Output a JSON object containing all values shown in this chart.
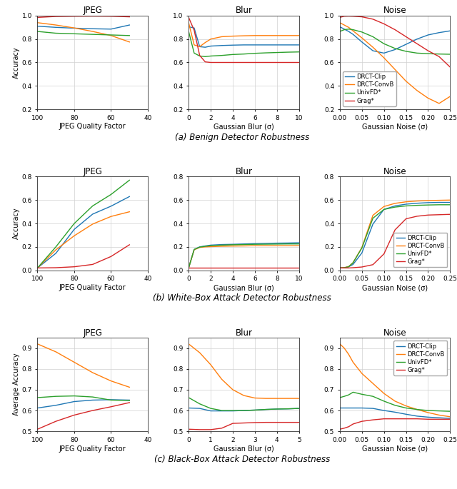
{
  "colors": {
    "DRCT-Clip": "#1f77b4",
    "DRCT-ConvB": "#ff7f0e",
    "UnivFD*": "#2ca02c",
    "Grag*": "#d62728"
  },
  "legend_labels": [
    "DRCT-Clip",
    "DRCT-ConvB",
    "UnivFD*",
    "Grag*"
  ],
  "row0": {
    "subtitle": "(a) Benign Detector Robustness",
    "ylabel": "Accuracy",
    "jpeg": {
      "title": "JPEG",
      "xlabel": "JPEG Quality Factor",
      "xlim": [
        100,
        45
      ],
      "ylim": [
        0.2,
        1.0
      ],
      "xticks": [
        100,
        80,
        60,
        40
      ],
      "yticks": [
        0.2,
        0.4,
        0.6,
        0.8,
        1.0
      ],
      "x": [
        100,
        90,
        80,
        70,
        60,
        50
      ],
      "DRCT-Clip": [
        0.91,
        0.9,
        0.893,
        0.888,
        0.885,
        0.92
      ],
      "DRCT-ConvB": [
        0.94,
        0.92,
        0.895,
        0.865,
        0.83,
        0.775
      ],
      "UnivFD*": [
        0.865,
        0.85,
        0.845,
        0.84,
        0.835,
        0.83
      ],
      "Grag*": [
        0.985,
        0.993,
        0.995,
        0.996,
        0.995,
        0.99
      ]
    },
    "blur": {
      "title": "Blur",
      "xlabel": "Gaussian Blur (σ)",
      "xlim": [
        0,
        10
      ],
      "ylim": [
        0.2,
        1.0
      ],
      "xticks": [
        0,
        2,
        4,
        6,
        8,
        10
      ],
      "yticks": [
        0.2,
        0.4,
        0.6,
        0.8,
        1.0
      ],
      "x": [
        0,
        0.5,
        1.0,
        1.5,
        2.0,
        3.0,
        4.0,
        5.0,
        6.0,
        7.0,
        8.0,
        9.0,
        10.0
      ],
      "DRCT-Clip": [
        0.905,
        0.895,
        0.735,
        0.73,
        0.74,
        0.745,
        0.748,
        0.75,
        0.75,
        0.75,
        0.75,
        0.75,
        0.75
      ],
      "DRCT-ConvB": [
        0.94,
        0.75,
        0.735,
        0.77,
        0.8,
        0.82,
        0.825,
        0.828,
        0.83,
        0.83,
        0.83,
        0.83,
        0.83
      ],
      "UnivFD*": [
        0.865,
        0.68,
        0.655,
        0.65,
        0.655,
        0.66,
        0.668,
        0.672,
        0.678,
        0.682,
        0.685,
        0.688,
        0.69
      ],
      "Grag*": [
        0.985,
        0.875,
        0.66,
        0.605,
        0.6,
        0.6,
        0.6,
        0.6,
        0.6,
        0.6,
        0.6,
        0.6,
        0.6
      ]
    },
    "noise": {
      "title": "Noise",
      "xlabel": "Gaussian Noise (σ)",
      "xlim": [
        0.0,
        0.25
      ],
      "ylim": [
        0.2,
        1.0
      ],
      "xticks": [
        0.0,
        0.05,
        0.1,
        0.15,
        0.2,
        0.25
      ],
      "yticks": [
        0.2,
        0.4,
        0.6,
        0.8,
        1.0
      ],
      "x": [
        0.0,
        0.01,
        0.02,
        0.03,
        0.05,
        0.075,
        0.1,
        0.125,
        0.15,
        0.175,
        0.2,
        0.225,
        0.25
      ],
      "DRCT-Clip": [
        0.905,
        0.885,
        0.865,
        0.84,
        0.775,
        0.7,
        0.68,
        0.71,
        0.755,
        0.8,
        0.835,
        0.855,
        0.87
      ],
      "DRCT-ConvB": [
        0.94,
        0.92,
        0.9,
        0.87,
        0.81,
        0.73,
        0.64,
        0.54,
        0.44,
        0.36,
        0.295,
        0.25,
        0.31
      ],
      "UnivFD*": [
        0.865,
        0.88,
        0.885,
        0.88,
        0.86,
        0.82,
        0.76,
        0.72,
        0.695,
        0.68,
        0.675,
        0.672,
        0.67
      ],
      "Grag*": [
        0.985,
        0.995,
        0.996,
        0.995,
        0.99,
        0.97,
        0.93,
        0.88,
        0.82,
        0.76,
        0.7,
        0.65,
        0.56
      ]
    }
  },
  "row1": {
    "subtitle": "(b) White-Box Attack Detector Robustness",
    "ylabel": "Accuracy",
    "jpeg": {
      "title": "JPEG",
      "xlabel": "JPEG Quality Factor",
      "xlim": [
        100,
        45
      ],
      "ylim": [
        0.0,
        0.8
      ],
      "xticks": [
        100,
        80,
        60,
        40
      ],
      "yticks": [
        0.0,
        0.2,
        0.4,
        0.6,
        0.8
      ],
      "x": [
        100,
        90,
        80,
        70,
        60,
        50
      ],
      "DRCT-Clip": [
        0.02,
        0.145,
        0.35,
        0.48,
        0.548,
        0.63
      ],
      "DRCT-ConvB": [
        0.02,
        0.175,
        0.295,
        0.395,
        0.46,
        0.5
      ],
      "UnivFD*": [
        0.02,
        0.2,
        0.4,
        0.55,
        0.648,
        0.77
      ],
      "Grag*": [
        0.02,
        0.022,
        0.03,
        0.05,
        0.118,
        0.218
      ]
    },
    "blur": {
      "title": "Blur",
      "xlabel": "Gaussian Blur (σ)",
      "xlim": [
        0,
        10
      ],
      "ylim": [
        0.0,
        0.8
      ],
      "xticks": [
        0,
        2,
        4,
        6,
        8,
        10
      ],
      "yticks": [
        0.0,
        0.2,
        0.4,
        0.6,
        0.8
      ],
      "x": [
        0,
        0.5,
        1.0,
        1.5,
        2.0,
        3.0,
        4.0,
        5.0,
        6.0,
        7.0,
        8.0,
        9.0,
        10.0
      ],
      "DRCT-Clip": [
        0.02,
        0.178,
        0.2,
        0.208,
        0.215,
        0.22,
        0.222,
        0.225,
        0.228,
        0.23,
        0.232,
        0.233,
        0.235
      ],
      "DRCT-ConvB": [
        0.02,
        0.175,
        0.195,
        0.2,
        0.202,
        0.205,
        0.207,
        0.208,
        0.21,
        0.21,
        0.21,
        0.21,
        0.21
      ],
      "UnivFD*": [
        0.02,
        0.178,
        0.198,
        0.205,
        0.21,
        0.215,
        0.218,
        0.22,
        0.222,
        0.223,
        0.224,
        0.225,
        0.225
      ],
      "Grag*": [
        0.02,
        0.02,
        0.02,
        0.02,
        0.02,
        0.02,
        0.02,
        0.02,
        0.02,
        0.02,
        0.02,
        0.02,
        0.02
      ]
    },
    "noise": {
      "title": "Noise",
      "xlabel": "Gaussian Noise (σ)",
      "xlim": [
        0.0,
        0.25
      ],
      "ylim": [
        0.0,
        0.8
      ],
      "xticks": [
        0.0,
        0.05,
        0.1,
        0.15,
        0.2,
        0.25
      ],
      "yticks": [
        0.0,
        0.2,
        0.4,
        0.6,
        0.8
      ],
      "x": [
        0.0,
        0.01,
        0.02,
        0.03,
        0.05,
        0.075,
        0.1,
        0.125,
        0.15,
        0.175,
        0.2,
        0.225,
        0.25
      ],
      "DRCT-Clip": [
        0.02,
        0.022,
        0.03,
        0.05,
        0.148,
        0.395,
        0.52,
        0.55,
        0.565,
        0.573,
        0.578,
        0.58,
        0.58
      ],
      "DRCT-ConvB": [
        0.02,
        0.022,
        0.032,
        0.065,
        0.195,
        0.47,
        0.545,
        0.572,
        0.585,
        0.592,
        0.596,
        0.598,
        0.6
      ],
      "UnivFD*": [
        0.02,
        0.022,
        0.03,
        0.065,
        0.19,
        0.445,
        0.52,
        0.54,
        0.55,
        0.555,
        0.558,
        0.56,
        0.56
      ],
      "Grag*": [
        0.02,
        0.02,
        0.02,
        0.022,
        0.028,
        0.048,
        0.14,
        0.345,
        0.44,
        0.462,
        0.472,
        0.475,
        0.478
      ]
    }
  },
  "row2": {
    "subtitle": "(c) Black-Box Attack Detector Robustness",
    "ylabel": "Average Accuracy",
    "jpeg": {
      "title": "JPEG",
      "xlabel": "JPEG Quality Factor",
      "xlim": [
        100,
        45
      ],
      "ylim": [
        0.5,
        0.95
      ],
      "xticks": [
        100,
        80,
        60,
        40
      ],
      "yticks": [
        0.5,
        0.6,
        0.7,
        0.8,
        0.9
      ],
      "x": [
        100,
        90,
        80,
        70,
        60,
        50
      ],
      "DRCT-Clip": [
        0.612,
        0.625,
        0.643,
        0.65,
        0.652,
        0.65
      ],
      "DRCT-ConvB": [
        0.92,
        0.882,
        0.832,
        0.782,
        0.742,
        0.712
      ],
      "UnivFD*": [
        0.662,
        0.668,
        0.67,
        0.665,
        0.65,
        0.648
      ],
      "Grag*": [
        0.51,
        0.548,
        0.578,
        0.6,
        0.618,
        0.638
      ]
    },
    "blur": {
      "title": "Blur",
      "xlabel": "Gaussian Blur (σ)",
      "xlim": [
        0,
        5
      ],
      "ylim": [
        0.5,
        0.95
      ],
      "xticks": [
        0,
        1,
        2,
        3,
        4,
        5
      ],
      "yticks": [
        0.5,
        0.6,
        0.7,
        0.8,
        0.9
      ],
      "x": [
        0,
        0.5,
        1.0,
        1.5,
        2.0,
        2.5,
        3.0,
        3.5,
        4.0,
        4.5,
        5.0
      ],
      "DRCT-Clip": [
        0.612,
        0.61,
        0.598,
        0.598,
        0.598,
        0.6,
        0.602,
        0.605,
        0.607,
        0.608,
        0.61
      ],
      "DRCT-ConvB": [
        0.92,
        0.878,
        0.82,
        0.75,
        0.7,
        0.672,
        0.66,
        0.658,
        0.658,
        0.658,
        0.658
      ],
      "UnivFD*": [
        0.662,
        0.632,
        0.61,
        0.6,
        0.6,
        0.6,
        0.602,
        0.605,
        0.607,
        0.608,
        0.61
      ],
      "Grag*": [
        0.51,
        0.508,
        0.508,
        0.515,
        0.538,
        0.54,
        0.542,
        0.543,
        0.543,
        0.543,
        0.543
      ]
    },
    "noise": {
      "title": "Noise",
      "xlabel": "Gaussian Noise (σ)",
      "xlim": [
        0.0,
        0.25
      ],
      "ylim": [
        0.5,
        0.95
      ],
      "xticks": [
        0.0,
        0.05,
        0.1,
        0.15,
        0.2,
        0.25
      ],
      "yticks": [
        0.5,
        0.6,
        0.7,
        0.8,
        0.9
      ],
      "x": [
        0.0,
        0.01,
        0.02,
        0.03,
        0.05,
        0.075,
        0.1,
        0.125,
        0.15,
        0.175,
        0.2,
        0.225,
        0.25
      ],
      "DRCT-Clip": [
        0.612,
        0.612,
        0.612,
        0.612,
        0.612,
        0.61,
        0.6,
        0.592,
        0.582,
        0.573,
        0.568,
        0.565,
        0.562
      ],
      "DRCT-ConvB": [
        0.92,
        0.9,
        0.87,
        0.832,
        0.778,
        0.73,
        0.682,
        0.645,
        0.622,
        0.605,
        0.59,
        0.578,
        0.57
      ],
      "UnivFD*": [
        0.662,
        0.668,
        0.675,
        0.688,
        0.678,
        0.668,
        0.645,
        0.625,
        0.612,
        0.605,
        0.6,
        0.598,
        0.596
      ],
      "Grag*": [
        0.51,
        0.515,
        0.522,
        0.535,
        0.548,
        0.555,
        0.56,
        0.56,
        0.56,
        0.56,
        0.558,
        0.558,
        0.558
      ]
    }
  }
}
